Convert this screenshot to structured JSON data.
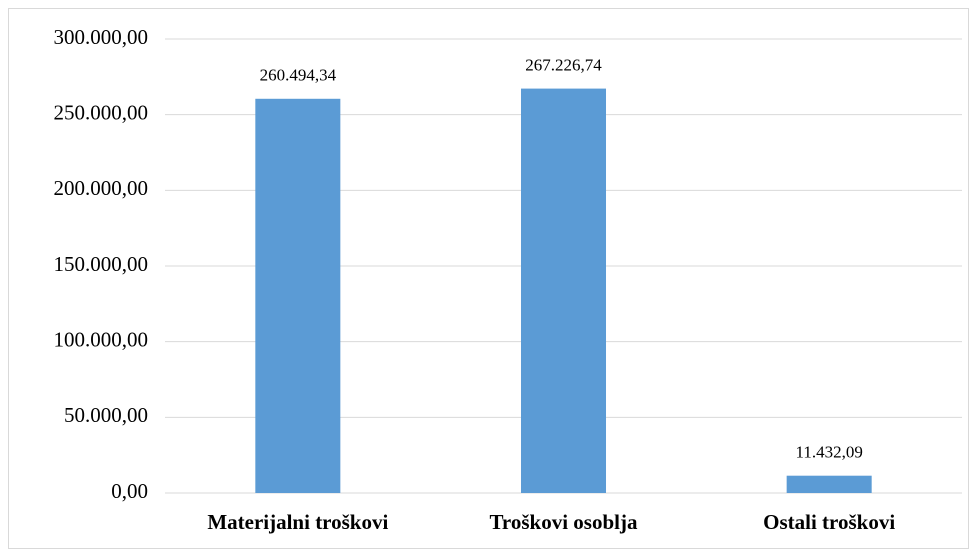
{
  "chart_data": {
    "type": "bar",
    "categories": [
      "Materijalni troškovi",
      "Troškovi osoblja",
      "Ostali troškovi"
    ],
    "values": [
      260494.34,
      267226.74,
      11432.09
    ],
    "value_labels": [
      "260.494,34",
      "267.226,74",
      "11.432,09"
    ],
    "color": "#5b9bd5",
    "ylim": [
      0,
      300000
    ],
    "yticks": [
      {
        "value": 0,
        "label": "0,00"
      },
      {
        "value": 50000,
        "label": "50.000,00"
      },
      {
        "value": 100000,
        "label": "100.000,00"
      },
      {
        "value": 150000,
        "label": "150.000,00"
      },
      {
        "value": 200000,
        "label": "200.000,00"
      },
      {
        "value": 250000,
        "label": "250.000,00"
      },
      {
        "value": 300000,
        "label": "300.000,00"
      }
    ],
    "grid": true
  }
}
